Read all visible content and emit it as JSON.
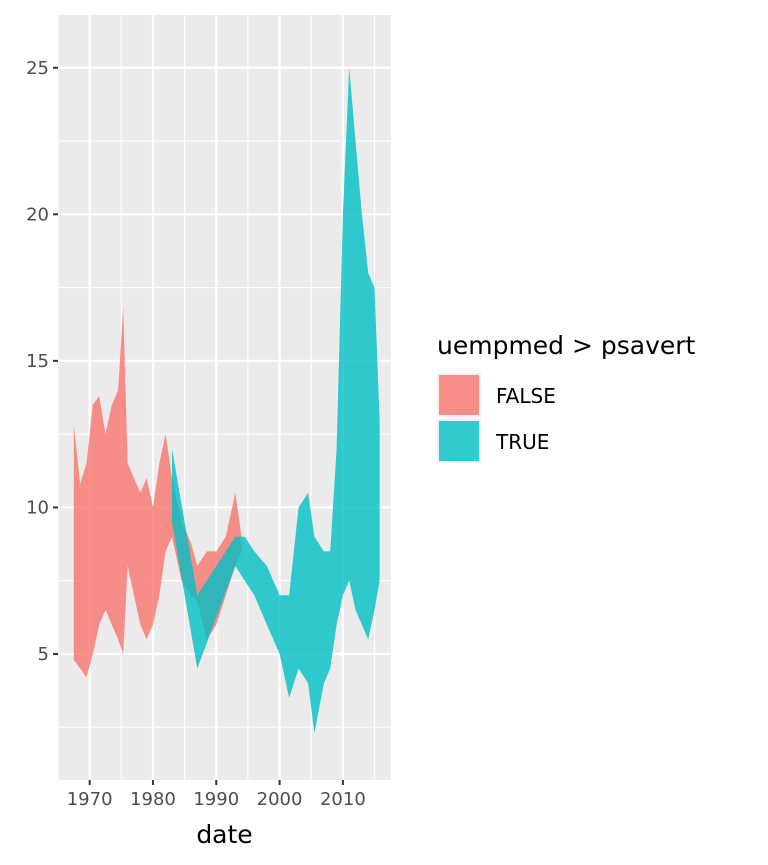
{
  "chart_data": {
    "type": "area",
    "xlabel": "date",
    "ylabel": "",
    "xlim": [
      1965.0,
      2017.6
    ],
    "ylim": [
      0.7,
      26.8
    ],
    "x_ticks": [
      1970,
      1980,
      1990,
      2000,
      2010
    ],
    "y_ticks": [
      5,
      10,
      15,
      20,
      25
    ],
    "grid": true,
    "legend": {
      "title": "uempmed > psavert",
      "position": "right",
      "entries": [
        {
          "label": "FALSE",
          "color": "#F8766D"
        },
        {
          "label": "TRUE",
          "color": "#00BFC4"
        }
      ]
    },
    "series": [
      {
        "name": "FALSE",
        "color": "#F8766D",
        "x": [
          1967.5,
          1968.5,
          1969.5,
          1970.5,
          1971.5,
          1972.5,
          1973.5,
          1974.5,
          1975.3,
          1976.0,
          1977.0,
          1978.0,
          1979.0,
          1980.0,
          1981.0,
          1982.0,
          1983.0,
          1984.5,
          1986.0,
          1987.0,
          1988.5,
          1990.0,
          1991.5,
          1993.0,
          1994.0
        ],
        "upper": [
          12.8,
          10.8,
          11.5,
          13.5,
          13.8,
          12.5,
          13.5,
          14.0,
          16.8,
          11.5,
          11.0,
          10.5,
          11.0,
          10.0,
          11.5,
          12.5,
          11.0,
          9.5,
          8.8,
          8.0,
          8.5,
          8.5,
          9.0,
          10.5,
          9.0
        ],
        "lower": [
          4.8,
          4.5,
          4.2,
          5.0,
          6.0,
          6.5,
          6.0,
          5.5,
          5.0,
          8.0,
          7.0,
          6.0,
          5.5,
          6.0,
          7.0,
          8.5,
          9.0,
          7.5,
          7.0,
          6.8,
          5.5,
          6.0,
          7.0,
          8.0,
          8.5
        ]
      },
      {
        "name": "TRUE",
        "color": "#00BFC4",
        "x": [
          1983.0,
          1987.0,
          1993.0,
          1994.5,
          1996.0,
          1998.0,
          2000.0,
          2001.5,
          2003.0,
          2004.5,
          2005.5,
          2007.0,
          2008.0,
          2009.0,
          2010.0,
          2011.0,
          2012.0,
          2013.0,
          2014.0,
          2015.0,
          2015.8
        ],
        "upper": [
          12.0,
          7.0,
          9.0,
          9.0,
          8.5,
          8.0,
          7.0,
          7.0,
          10.0,
          10.5,
          9.0,
          8.5,
          8.5,
          12.0,
          20.0,
          25.0,
          22.5,
          20.0,
          18.0,
          17.5,
          13.0
        ],
        "lower": [
          9.5,
          4.5,
          8.0,
          7.5,
          7.0,
          6.0,
          5.0,
          3.5,
          4.5,
          4.0,
          2.3,
          4.0,
          4.5,
          6.0,
          7.0,
          7.5,
          6.5,
          6.0,
          5.5,
          6.5,
          7.5
        ]
      }
    ]
  }
}
